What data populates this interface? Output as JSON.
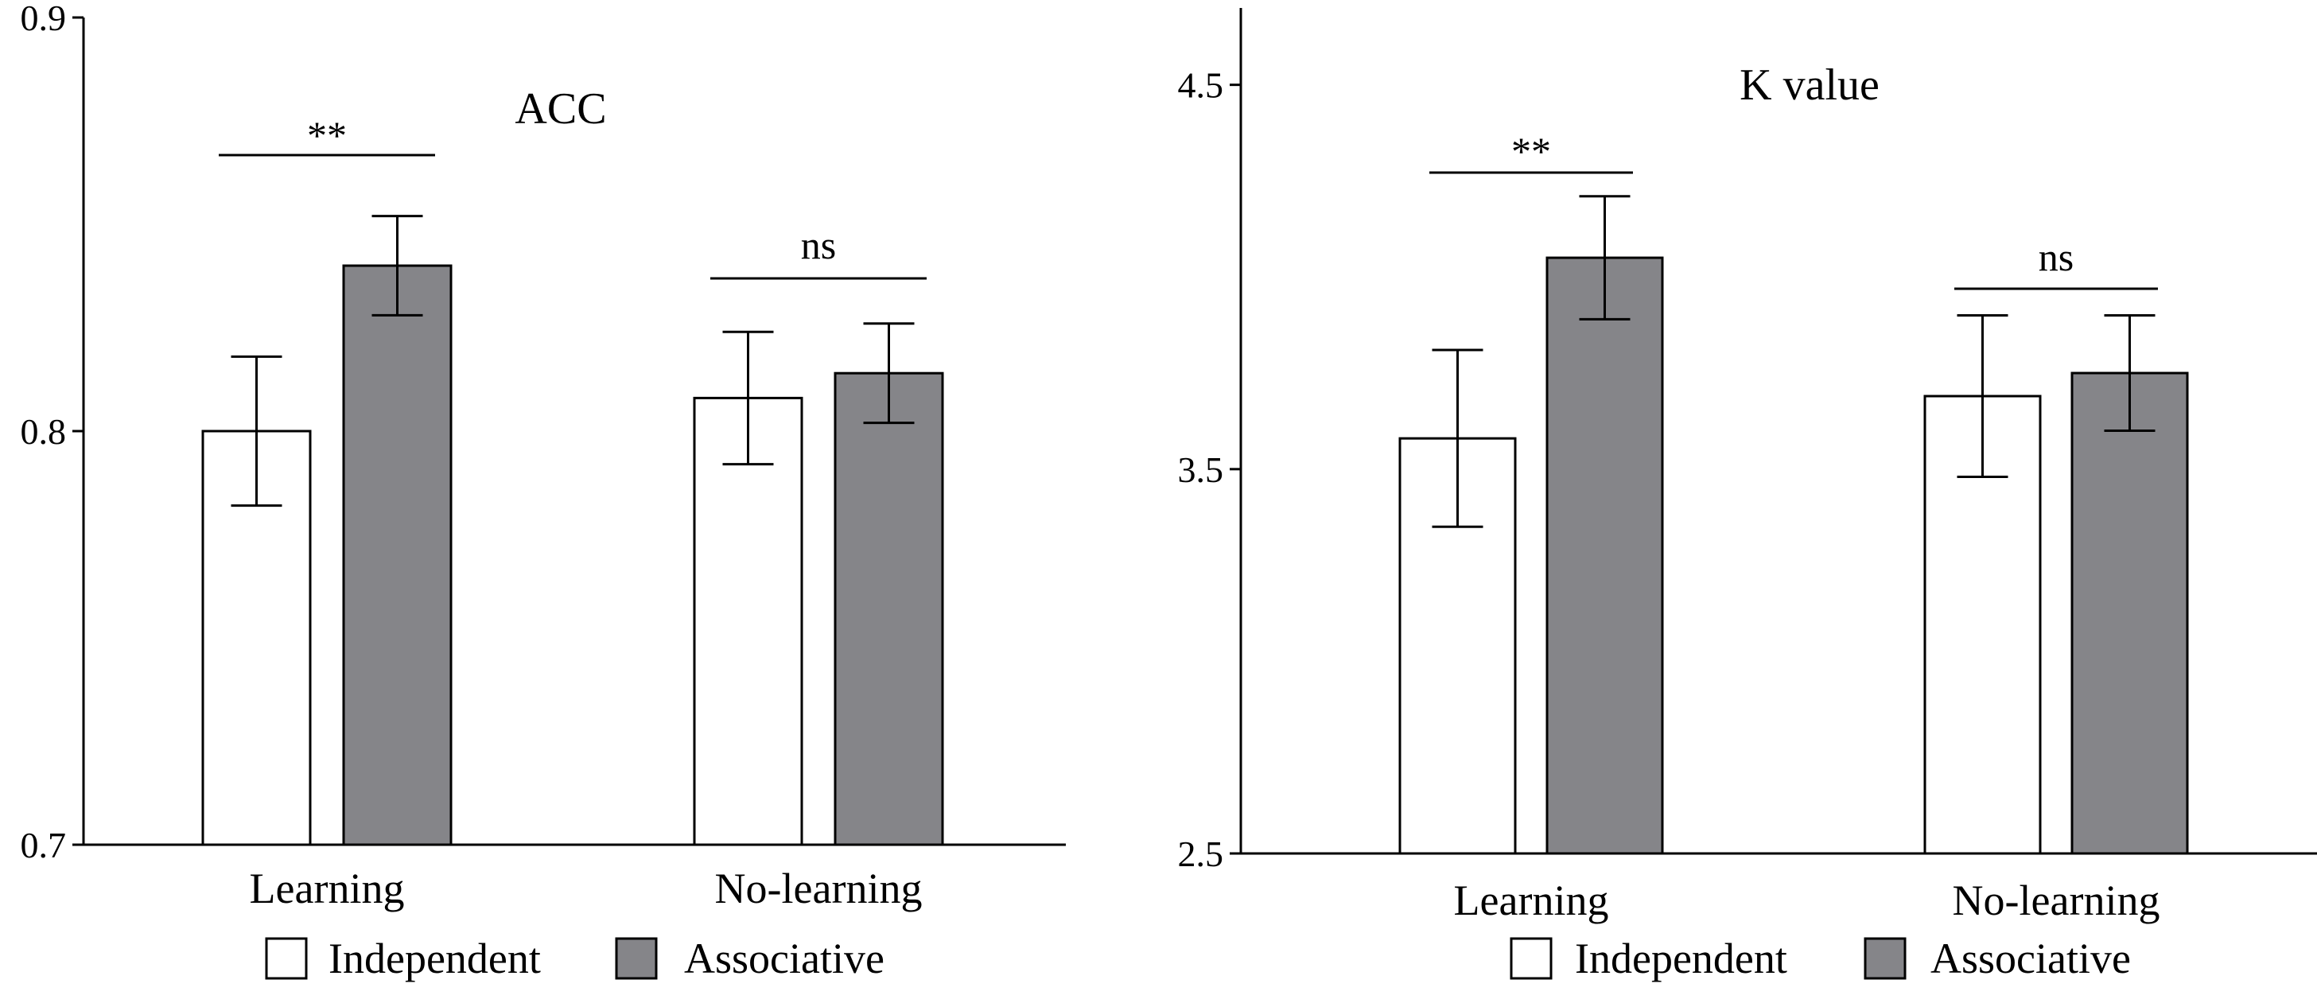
{
  "chart_data": [
    {
      "type": "bar",
      "title": "ACC",
      "categories": [
        "Learning",
        "No-learning"
      ],
      "series": [
        {
          "name": "Independent",
          "values": [
            0.8,
            0.808
          ],
          "err": [
            0.018,
            0.016
          ],
          "color": "#ffffff"
        },
        {
          "name": "Associative",
          "values": [
            0.84,
            0.814
          ],
          "err": [
            0.012,
            0.012
          ],
          "color": "#858589"
        }
      ],
      "ylim": [
        0.7,
        0.9
      ],
      "yticks": [
        "0.7",
        "0.8",
        "0.9"
      ],
      "significance": [
        {
          "category": "Learning",
          "label": "**"
        },
        {
          "category": "No-learning",
          "label": "ns"
        }
      ],
      "grid": false,
      "legend": "bottom"
    },
    {
      "type": "bar",
      "title": "K value",
      "categories": [
        "Learning",
        "No-learning"
      ],
      "series": [
        {
          "name": "Independent",
          "values": [
            3.58,
            3.69
          ],
          "err": [
            0.23,
            0.21
          ],
          "color": "#ffffff"
        },
        {
          "name": "Associative",
          "values": [
            4.05,
            3.75
          ],
          "err": [
            0.16,
            0.15
          ],
          "color": "#858589"
        }
      ],
      "ylim": [
        2.5,
        4.7
      ],
      "yticks": [
        "2.5",
        "3.5",
        "4.5"
      ],
      "significance": [
        {
          "category": "Learning",
          "label": "**"
        },
        {
          "category": "No-learning",
          "label": "ns"
        }
      ],
      "grid": false,
      "legend": "bottom"
    }
  ]
}
